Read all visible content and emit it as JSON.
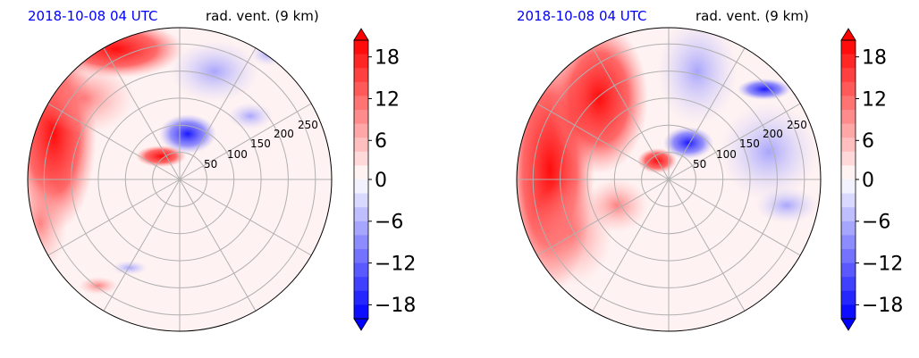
{
  "chart_data": [
    {
      "type": "heatmap",
      "projection": "polar",
      "title_left": "2018-10-08 04 UTC",
      "title_right": "rad. vent. (9 km)",
      "radial_ticks": [
        50,
        100,
        150,
        200,
        250
      ],
      "angular_gridlines_deg": [
        0,
        30,
        60,
        90,
        120,
        150,
        180,
        210,
        240,
        270,
        300,
        330
      ],
      "colorbar": {
        "ticks": [
          18,
          12,
          6,
          0,
          -6,
          -12,
          -18
        ],
        "tick_labels": [
          "18",
          "12",
          "6",
          "0",
          "−6",
          "−12",
          "−18"
        ],
        "range": [
          -20,
          20
        ],
        "extend": "both",
        "colormap": "bwr"
      },
      "features": [
        {
          "description": "positive velocities along western and north-western edge",
          "sign": "positive"
        },
        {
          "description": "negative velocity cluster near center north-east",
          "sign": "negative"
        },
        {
          "description": "weak negative region north-east",
          "sign": "negative"
        }
      ]
    },
    {
      "type": "heatmap",
      "projection": "polar",
      "title_left": "2018-10-08 04 UTC",
      "title_right": "rad. vent. (9 km)",
      "radial_ticks": [
        50,
        100,
        150,
        200,
        250
      ],
      "angular_gridlines_deg": [
        0,
        30,
        60,
        90,
        120,
        150,
        180,
        210,
        240,
        270,
        300,
        330
      ],
      "colorbar": {
        "ticks": [
          18,
          12,
          6,
          0,
          -6,
          -12,
          -18
        ],
        "tick_labels": [
          "18",
          "12",
          "6",
          "0",
          "−6",
          "−12",
          "−18"
        ],
        "range": [
          -20,
          20
        ],
        "extend": "both",
        "colormap": "bwr"
      },
      "features": [
        {
          "description": "strong positive velocities across western half",
          "sign": "positive"
        },
        {
          "description": "negative velocities across eastern half",
          "sign": "negative"
        }
      ]
    }
  ],
  "colors": {
    "strong_positive": "#ff0000",
    "strong_negative": "#0000ff",
    "neutral": "#ffffff",
    "grid": "#b0b0b0",
    "title_time": "#0000ff"
  }
}
